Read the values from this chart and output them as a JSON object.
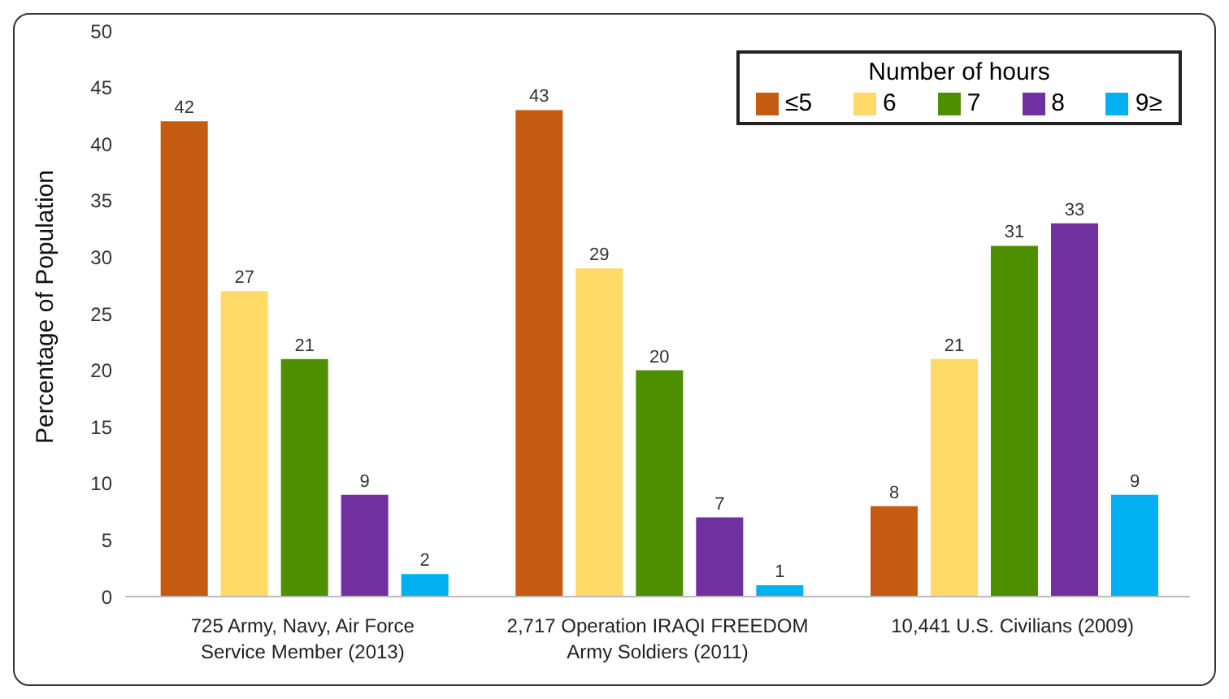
{
  "chart_data": {
    "type": "bar",
    "ylabel": "Percentage of Population",
    "legend_title": "Number of hours",
    "categories": [
      "725 Army, Navy, Air Force Service Member (2013)",
      "2,717 Operation IRAQI FREEDOM Army Soldiers (2011)",
      "10,441 U.S. Civilians (2009)"
    ],
    "series": [
      {
        "name": "≤5",
        "color": "#c55a11",
        "values": [
          42,
          43,
          8
        ]
      },
      {
        "name": "6",
        "color": "#ffd966",
        "values": [
          27,
          29,
          21
        ]
      },
      {
        "name": "7",
        "color": "#4e8f00",
        "values": [
          21,
          20,
          31
        ]
      },
      {
        "name": "8",
        "color": "#7030a0",
        "values": [
          9,
          7,
          33
        ]
      },
      {
        "name": "9≥",
        "color": "#00b0f0",
        "values": [
          2,
          1,
          9
        ]
      }
    ],
    "ylim": [
      0,
      50
    ],
    "yticks": [
      0,
      5,
      10,
      15,
      20,
      25,
      30,
      35,
      40,
      45,
      50
    ],
    "data_labels": true,
    "legend": "top right",
    "grid": false
  }
}
